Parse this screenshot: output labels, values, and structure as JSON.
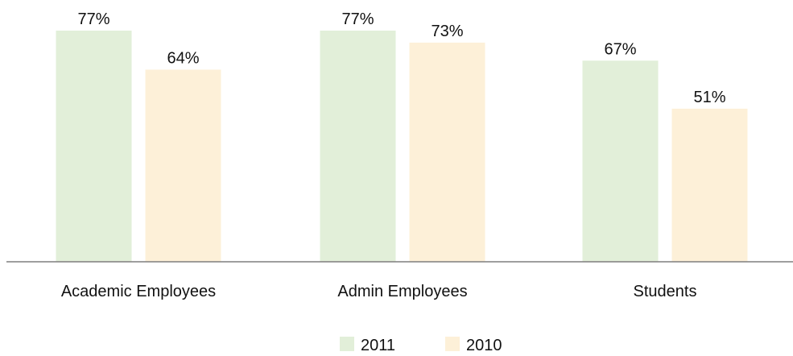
{
  "chart_data": {
    "type": "bar",
    "categories": [
      "Academic Employees",
      "Admin Employees",
      "Students"
    ],
    "series": [
      {
        "name": "2011",
        "values": [
          77,
          77,
          67
        ],
        "color": "#e2efd9"
      },
      {
        "name": "2010",
        "values": [
          64,
          73,
          51
        ],
        "color": "#fdf0d8"
      }
    ],
    "value_suffix": "%",
    "ylim": [
      0,
      77
    ],
    "axis_color": "#7f7f7f",
    "grid": false,
    "legend_position": "bottom"
  }
}
